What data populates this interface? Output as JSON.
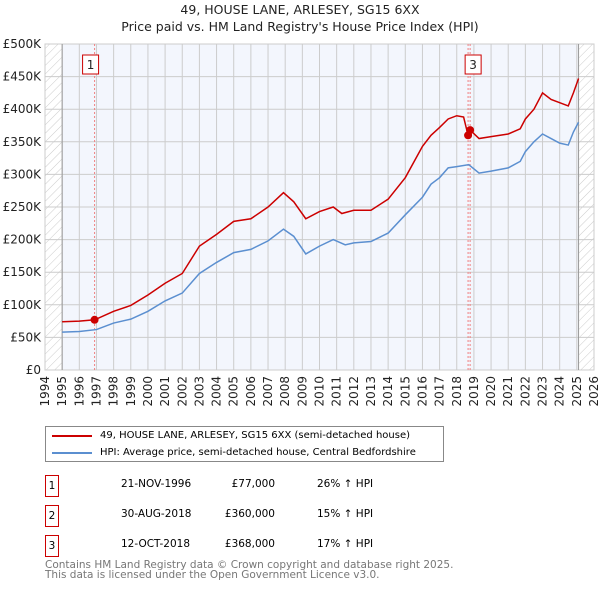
{
  "chart_data": {
    "type": "line",
    "title": "49, HOUSE LANE, ARLESEY, SG15 6XX",
    "subtitle": "Price paid vs. HM Land Registry's House Price Index (HPI)",
    "xlim": [
      1994,
      2026
    ],
    "ylim": [
      0,
      500
    ],
    "x_ticks": [
      "1994",
      "1995",
      "1996",
      "1997",
      "1998",
      "1999",
      "2000",
      "2001",
      "2002",
      "2003",
      "2004",
      "2005",
      "2006",
      "2007",
      "2008",
      "2009",
      "2010",
      "2011",
      "2012",
      "2013",
      "2014",
      "2015",
      "2016",
      "2017",
      "2018",
      "2019",
      "2020",
      "2021",
      "2022",
      "2023",
      "2024",
      "2025",
      "2026"
    ],
    "y_ticks": [
      {
        "v": 0,
        "label": "£0"
      },
      {
        "v": 50,
        "label": "£50K"
      },
      {
        "v": 100,
        "label": "£100K"
      },
      {
        "v": 150,
        "label": "£150K"
      },
      {
        "v": 200,
        "label": "£200K"
      },
      {
        "v": 250,
        "label": "£250K"
      },
      {
        "v": 300,
        "label": "£300K"
      },
      {
        "v": 350,
        "label": "£350K"
      },
      {
        "v": 400,
        "label": "£400K"
      },
      {
        "v": 450,
        "label": "£450K"
      },
      {
        "v": 500,
        "label": "£500K"
      }
    ],
    "data_range": [
      1995,
      2025.1
    ],
    "series": [
      {
        "name": "49, HOUSE LANE, ARLESEY, SG15 6XX (semi-detached house)",
        "color": "#cc0000",
        "x": [
          1995,
          1996,
          1996.9,
          1998,
          1999,
          2000,
          2001,
          2002,
          2003,
          2004,
          2005,
          2006,
          2007,
          2007.9,
          2008.5,
          2009.2,
          2010,
          2010.8,
          2011.3,
          2012,
          2013,
          2014,
          2015,
          2016,
          2016.5,
          2017,
          2017.5,
          2018,
          2018.4,
          2018.66,
          2018.78,
          2019.3,
          2020,
          2021,
          2021.7,
          2022,
          2022.5,
          2023,
          2023.5,
          2024,
          2024.5,
          2024.8,
          2025.1
        ],
        "y": [
          74,
          75,
          77,
          90,
          99,
          115,
          133,
          148,
          190,
          208,
          228,
          232,
          250,
          272,
          258,
          232,
          243,
          250,
          240,
          245,
          245,
          262,
          295,
          343,
          360,
          372,
          385,
          390,
          388,
          360,
          368,
          355,
          358,
          362,
          370,
          385,
          400,
          425,
          415,
          410,
          405,
          425,
          447
        ]
      },
      {
        "name": "HPI: Average price, semi-detached house, Central Bedfordshire",
        "color": "#5b8fd0",
        "x": [
          1995,
          1996,
          1997,
          1998,
          1999,
          2000,
          2001,
          2002,
          2003,
          2004,
          2005,
          2006,
          2007,
          2007.9,
          2008.5,
          2009.2,
          2010,
          2010.8,
          2011.5,
          2012,
          2013,
          2014,
          2015,
          2016,
          2016.5,
          2017,
          2017.5,
          2018,
          2018.7,
          2019.3,
          2020,
          2021,
          2021.7,
          2022,
          2022.5,
          2023,
          2023.5,
          2024,
          2024.5,
          2024.8,
          2025.1
        ],
        "y": [
          58,
          59,
          62,
          72,
          78,
          90,
          106,
          118,
          148,
          165,
          180,
          185,
          198,
          216,
          205,
          178,
          190,
          200,
          192,
          195,
          197,
          210,
          238,
          265,
          285,
          295,
          310,
          312,
          315,
          302,
          305,
          310,
          320,
          335,
          350,
          362,
          355,
          348,
          345,
          365,
          380
        ]
      }
    ],
    "sales": [
      {
        "id": "1",
        "x": 1996.89,
        "y": 77,
        "date": "21-NOV-1996",
        "price": "£77,000",
        "hpi": "26% ↑ HPI"
      },
      {
        "id": "2",
        "x": 2018.66,
        "y": 360,
        "date": "30-AUG-2018",
        "price": "£360,000",
        "hpi": "15% ↑ HPI"
      },
      {
        "id": "3",
        "x": 2018.78,
        "y": 368,
        "date": "12-OCT-2018",
        "price": "£368,000",
        "hpi": "17% ↑ HPI"
      }
    ],
    "footer": [
      "Contains HM Land Registry data © Crown copyright and database right 2025.",
      "This data is licensed under the Open Government Licence v3.0."
    ]
  }
}
